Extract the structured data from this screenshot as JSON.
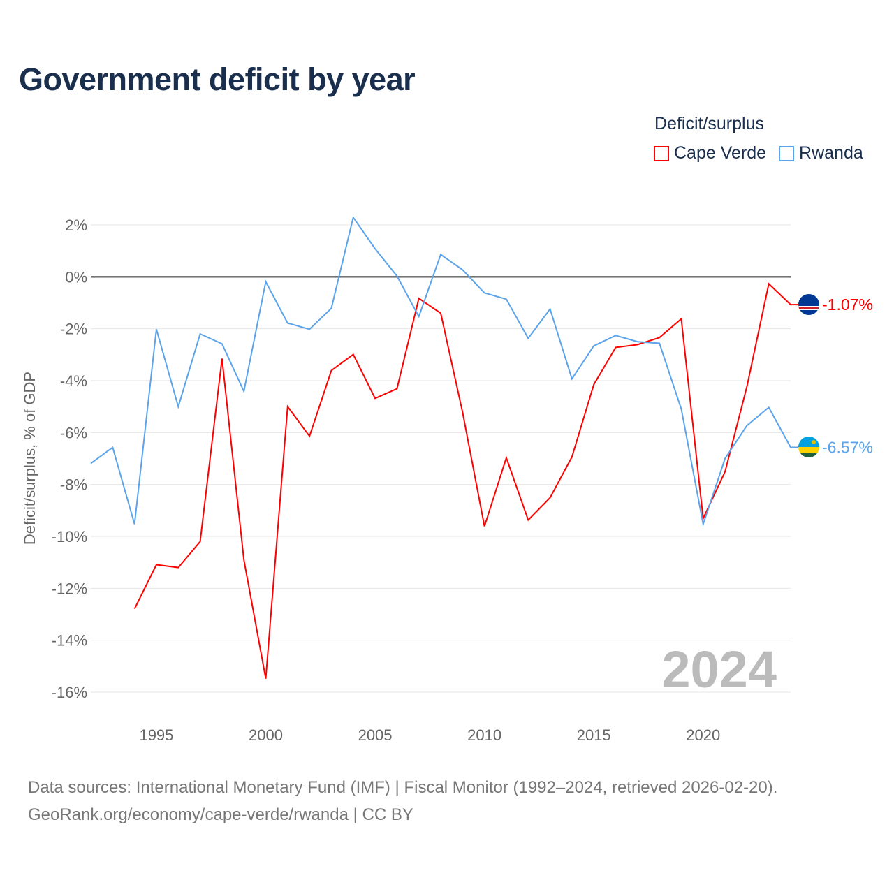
{
  "title": "Government deficit by year",
  "legend": {
    "title": "Deficit/surplus",
    "items": [
      {
        "label": "Cape Verde",
        "color": "#ff0000"
      },
      {
        "label": "Rwanda",
        "color": "#5ba3ea"
      }
    ]
  },
  "footer": {
    "line1": "Data sources: International Monetary Fund (IMF) | Fiscal Monitor (1992–2024, retrieved 2026-02-20).",
    "line2": "GeoRank.org/economy/cape-verde/rwanda | CC BY"
  },
  "chart_data": {
    "type": "line",
    "title": "Government deficit by year",
    "xlabel": "",
    "ylabel": "Deficit/surplus, % of GDP",
    "xlim": [
      1992,
      2024
    ],
    "ylim": [
      -16,
      2
    ],
    "yticks": [
      2,
      0,
      -2,
      -4,
      -6,
      -8,
      -10,
      -12,
      -14,
      -16
    ],
    "ytick_labels": [
      "2%",
      "0%",
      "-2%",
      "-4%",
      "-6%",
      "-8%",
      "-10%",
      "-12%",
      "-14%",
      "-16%"
    ],
    "xticks": [
      1995,
      2000,
      2005,
      2010,
      2015,
      2020
    ],
    "xtick_labels": [
      "1995",
      "2000",
      "2005",
      "2010",
      "2015",
      "2020"
    ],
    "watermark": "2024",
    "series": [
      {
        "name": "Cape Verde",
        "color": "#ff0000",
        "end_label": "-1.07%",
        "x": [
          1994,
          1995,
          1996,
          1997,
          1998,
          1999,
          2000,
          2001,
          2002,
          2003,
          2004,
          2005,
          2006,
          2007,
          2008,
          2009,
          2010,
          2011,
          2012,
          2013,
          2014,
          2015,
          2016,
          2017,
          2018,
          2019,
          2020,
          2021,
          2022,
          2023,
          2024
        ],
        "values": [
          -12.79,
          -11.09,
          -11.2,
          -10.2,
          -3.15,
          -10.9,
          -15.48,
          -5.0,
          -6.14,
          -3.61,
          -2.99,
          -4.68,
          -4.31,
          -0.83,
          -1.4,
          -5.22,
          -9.61,
          -6.97,
          -9.37,
          -8.51,
          -6.94,
          -4.15,
          -2.72,
          -2.61,
          -2.34,
          -1.62,
          -9.31,
          -7.51,
          -4.23,
          -0.27,
          -1.07
        ]
      },
      {
        "name": "Rwanda",
        "color": "#5ba3ea",
        "end_label": "-6.57%",
        "x": [
          1992,
          1993,
          1994,
          1995,
          1996,
          1997,
          1998,
          1999,
          2000,
          2001,
          2002,
          2003,
          2004,
          2005,
          2006,
          2007,
          2008,
          2009,
          2010,
          2011,
          2012,
          2013,
          2014,
          2015,
          2016,
          2017,
          2018,
          2019,
          2020,
          2021,
          2022,
          2023,
          2024
        ],
        "values": [
          -7.19,
          -6.57,
          -9.53,
          -2.02,
          -5.0,
          -2.2,
          -2.58,
          -4.41,
          -0.19,
          -1.78,
          -2.02,
          -1.21,
          2.29,
          1.08,
          0.03,
          -1.53,
          0.86,
          0.27,
          -0.62,
          -0.86,
          -2.37,
          -1.24,
          -3.93,
          -2.66,
          -2.26,
          -2.5,
          -2.56,
          -5.09,
          -9.53,
          -7.0,
          -5.73,
          -5.03,
          -6.57
        ]
      }
    ]
  }
}
